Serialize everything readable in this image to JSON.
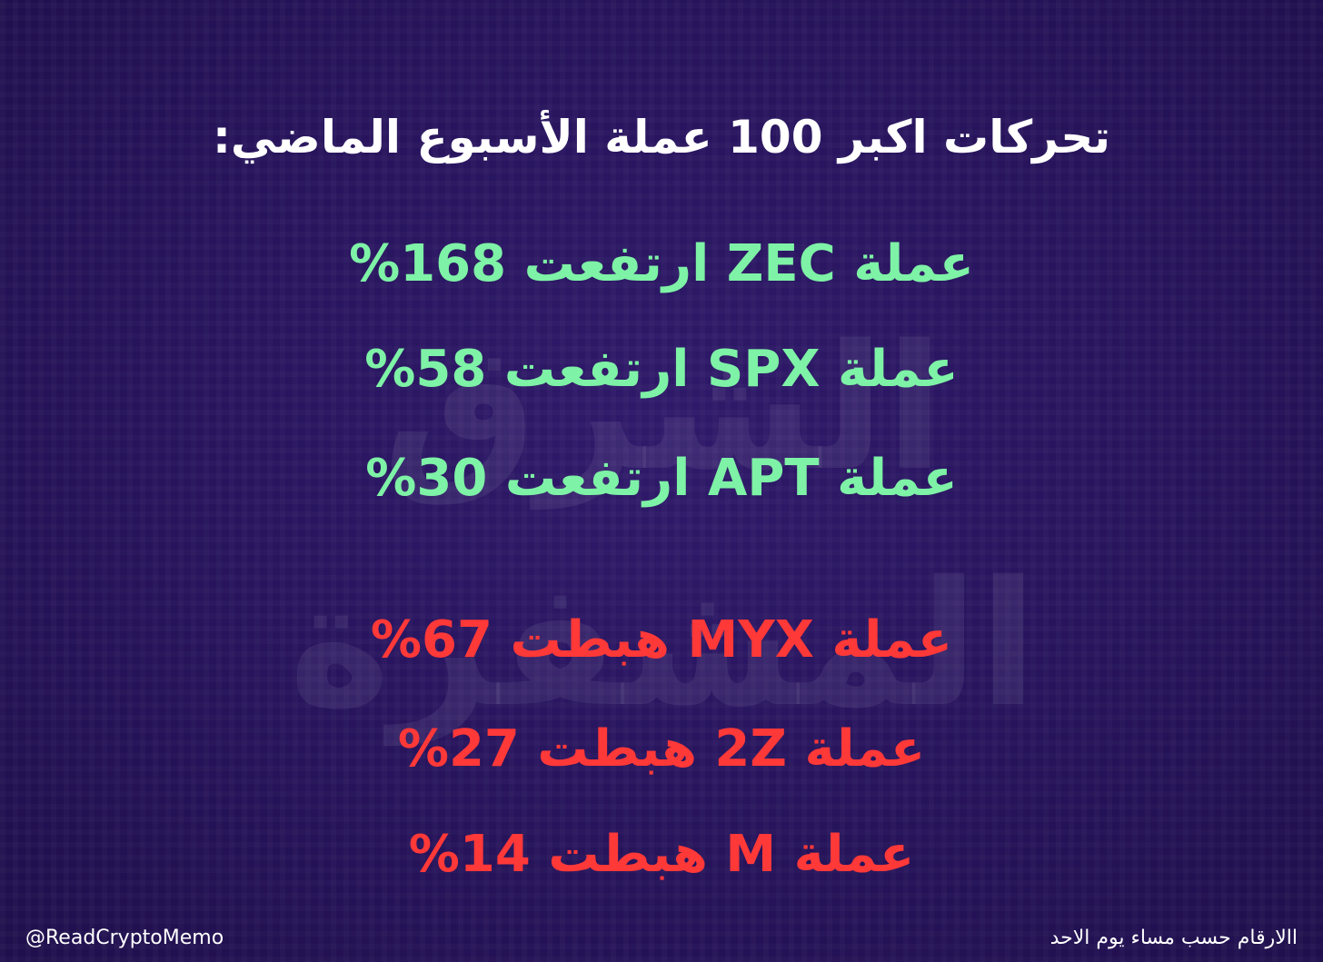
{
  "title": "تحركات اكبر 100 عملة الأسبوع الماضي:",
  "watermark": "الشرق المشفرة",
  "gainers": [
    "عملة ZEC ارتفعت 168%",
    "عملة SPX ارتفعت 58%",
    "عملة APT ارتفعت 30%"
  ],
  "losers": [
    "عملة MYX هبطت 67%",
    "عملة 2Z هبطت 27%",
    "عملة M هبطت 14%"
  ],
  "footer": {
    "handle": "@ReadCryptoMemo",
    "note": "االارقام حسب مساء يوم الاحد"
  }
}
